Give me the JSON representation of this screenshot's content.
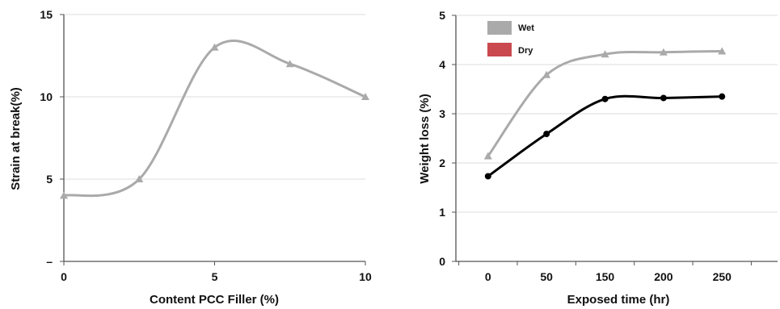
{
  "chart_data": [
    {
      "type": "line",
      "xlabel": "Content PCC Filler (%)",
      "ylabel": "Strain at break(%)",
      "xlim": [
        0,
        10
      ],
      "ylim": [
        0,
        15
      ],
      "x_ticks": [
        "0",
        "5",
        "10"
      ],
      "x_tick_values": [
        0,
        5,
        10
      ],
      "y_ticks": [
        "–",
        "5",
        "10",
        "15"
      ],
      "y_tick_values": [
        0,
        5,
        10,
        15
      ],
      "grid": true,
      "series": [
        {
          "x": [
            0,
            2.5,
            5,
            7.5,
            10
          ],
          "values": [
            4,
            5,
            13,
            12,
            10
          ],
          "color": "#aaaaaa",
          "marker": "triangle"
        }
      ]
    },
    {
      "type": "line",
      "xlabel": "Exposed time (hr)",
      "ylabel": "Weight loss (%)",
      "categories": [
        "0",
        "50",
        "150",
        "200",
        "250"
      ],
      "ylim": [
        0,
        5
      ],
      "y_ticks": [
        "0",
        "1",
        "2",
        "3",
        "4",
        "5"
      ],
      "grid": true,
      "legend": "top-left",
      "legend_entries": [
        {
          "name": "Wet",
          "color": "#aaaaaa"
        },
        {
          "name": "Dry",
          "color": "#c9494f"
        }
      ],
      "series": [
        {
          "name": "Wet",
          "values": [
            2.14,
            3.79,
            4.21,
            4.25,
            4.27
          ],
          "color": "#aaaaaa",
          "marker": "triangle"
        },
        {
          "name": "Dry",
          "values": [
            1.73,
            2.59,
            3.3,
            3.32,
            3.35
          ],
          "color": "#000000",
          "marker": "circle"
        }
      ]
    }
  ]
}
